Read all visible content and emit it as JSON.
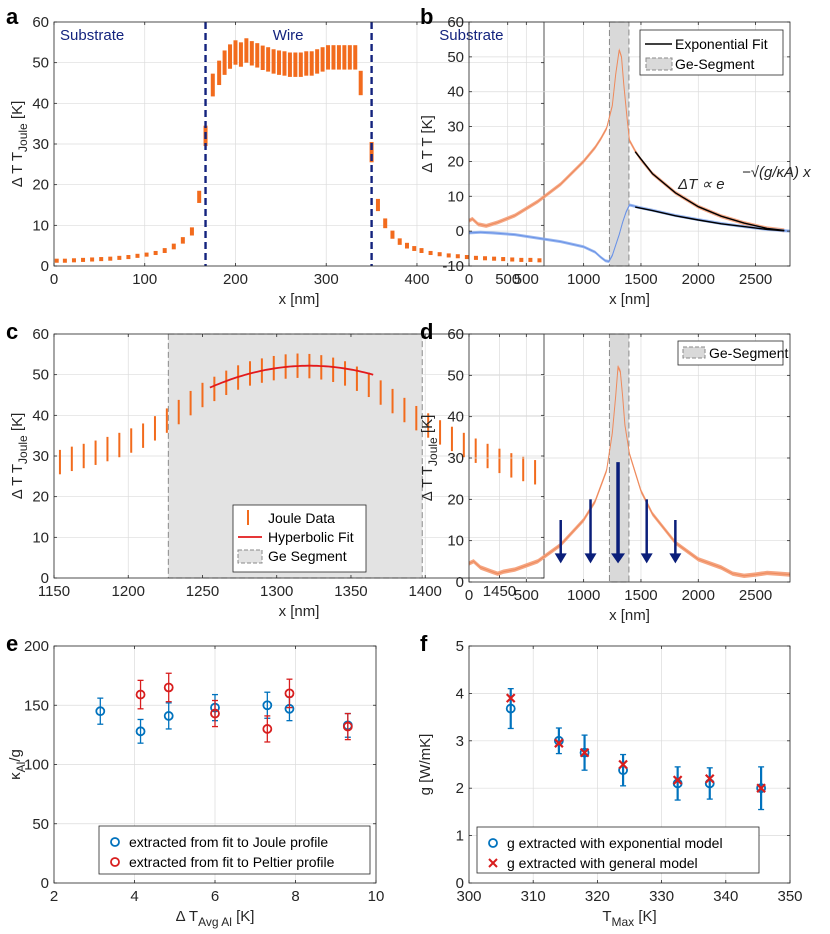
{
  "chart_data": [
    {
      "id": "a",
      "type": "scatter",
      "panel_label": "a",
      "xlabel": "x [nm]",
      "ylabel_main": "Δ T",
      "ylabel_sub": "Joule",
      "xlim": [
        0,
        540
      ],
      "ylim": [
        0,
        60
      ],
      "xticks": [
        0,
        100,
        200,
        300,
        400,
        500
      ],
      "yticks": [
        0,
        10,
        20,
        30,
        40,
        50,
        60
      ],
      "region_labels": [
        {
          "text": "Substrate",
          "x": 42
        },
        {
          "text": "Wire",
          "x": 258
        },
        {
          "text": "Substrate",
          "x": 460
        }
      ],
      "vlines": [
        167,
        350
      ],
      "errorbars": [
        [
          3,
          1.3,
          0.5
        ],
        [
          12,
          1.3,
          0.5
        ],
        [
          22,
          1.4,
          0.5
        ],
        [
          32,
          1.5,
          0.5
        ],
        [
          42,
          1.6,
          0.5
        ],
        [
          52,
          1.7,
          0.5
        ],
        [
          62,
          1.8,
          0.5
        ],
        [
          72,
          2.0,
          0.5
        ],
        [
          82,
          2.2,
          0.5
        ],
        [
          92,
          2.5,
          0.5
        ],
        [
          102,
          2.8,
          0.5
        ],
        [
          112,
          3.2,
          0.5
        ],
        [
          122,
          3.8,
          0.6
        ],
        [
          132,
          4.8,
          0.7
        ],
        [
          142,
          6.3,
          0.8
        ],
        [
          152,
          8.5,
          1.0
        ],
        [
          160,
          17,
          1.5
        ],
        [
          167,
          32,
          2.5
        ],
        [
          175,
          44.5,
          2.8
        ],
        [
          182,
          47.5,
          3
        ],
        [
          188,
          50,
          3
        ],
        [
          194,
          51.5,
          3
        ],
        [
          200,
          52.5,
          3
        ],
        [
          206,
          52,
          3
        ],
        [
          212,
          53,
          3
        ],
        [
          218,
          52.3,
          3
        ],
        [
          224,
          51.8,
          3
        ],
        [
          230,
          51.2,
          3
        ],
        [
          236,
          50.8,
          3
        ],
        [
          242,
          50.3,
          3
        ],
        [
          248,
          50,
          3
        ],
        [
          254,
          49.8,
          3
        ],
        [
          260,
          49.5,
          3
        ],
        [
          266,
          49.5,
          3
        ],
        [
          272,
          49.5,
          3
        ],
        [
          278,
          49.8,
          3
        ],
        [
          284,
          49.8,
          3
        ],
        [
          290,
          50.3,
          3
        ],
        [
          296,
          50.8,
          3
        ],
        [
          302,
          51.3,
          3
        ],
        [
          308,
          51.3,
          3
        ],
        [
          314,
          51.3,
          3
        ],
        [
          320,
          51.3,
          3
        ],
        [
          326,
          51.3,
          3
        ],
        [
          332,
          51.3,
          3
        ],
        [
          338,
          45,
          3
        ],
        [
          350,
          28,
          2.5
        ],
        [
          357,
          15,
          1.5
        ],
        [
          365,
          10.5,
          1.2
        ],
        [
          373,
          7.7,
          1
        ],
        [
          381,
          6,
          0.8
        ],
        [
          389,
          5,
          0.7
        ],
        [
          397,
          4.3,
          0.6
        ],
        [
          405,
          3.8,
          0.6
        ],
        [
          415,
          3.2,
          0.5
        ],
        [
          425,
          2.9,
          0.5
        ],
        [
          435,
          2.6,
          0.5
        ],
        [
          445,
          2.4,
          0.5
        ],
        [
          455,
          2.2,
          0.5
        ],
        [
          465,
          2.0,
          0.5
        ],
        [
          475,
          1.9,
          0.5
        ],
        [
          485,
          1.8,
          0.5
        ],
        [
          495,
          1.7,
          0.5
        ],
        [
          505,
          1.6,
          0.5
        ],
        [
          515,
          1.5,
          0.5
        ],
        [
          525,
          1.5,
          0.5
        ],
        [
          535,
          1.4,
          0.5
        ]
      ]
    },
    {
      "id": "b",
      "type": "line",
      "panel_label": "b",
      "xlabel": "x [nm]",
      "ylabel_main": "Δ T",
      "ylabel_sub": "",
      "xlim": [
        0,
        2800
      ],
      "ylim": [
        -10,
        60
      ],
      "xticks": [
        0,
        500,
        1000,
        1500,
        2000,
        2500
      ],
      "yticks": [
        -10,
        0,
        10,
        20,
        30,
        40,
        50,
        60
      ],
      "shade": [
        1225,
        1395
      ],
      "legend": [
        "Exponential Fit",
        "Ge-Segment"
      ],
      "annotation": "ΔT ∝ e^(−√(g/κA) x)",
      "series": [
        {
          "name": "orange",
          "x": [
            0,
            30,
            80,
            150,
            250,
            400,
            600,
            800,
            1000,
            1100,
            1150,
            1200,
            1250,
            1280,
            1310,
            1330,
            1350,
            1380,
            1400,
            1450,
            1500,
            1600,
            1800,
            2000,
            2200,
            2400,
            2600,
            2750
          ],
          "y": [
            3,
            3.5,
            2,
            1.5,
            2.5,
            4.5,
            8.5,
            13.5,
            20,
            24,
            26.5,
            29.5,
            36,
            45,
            52,
            50,
            42,
            32,
            26,
            23,
            20.5,
            16.5,
            11,
            7,
            4.3,
            2.3,
            0.8,
            0.2
          ]
        },
        {
          "name": "blue",
          "x": [
            0,
            100,
            200,
            400,
            600,
            800,
            1000,
            1100,
            1150,
            1190,
            1220,
            1250,
            1280,
            1310,
            1340,
            1370,
            1400,
            1430,
            1480,
            1600,
            1800,
            2000,
            2200,
            2400,
            2600,
            2800
          ],
          "y": [
            -0.5,
            -0.3,
            -0.5,
            -1,
            -2,
            -3,
            -4.5,
            -6,
            -7.5,
            -8.5,
            -8.7,
            -7,
            -4,
            -1,
            2.5,
            5.5,
            7.5,
            7.3,
            6.8,
            6,
            4.5,
            3.3,
            2.2,
            1.3,
            0.5,
            0
          ]
        },
        {
          "name": "Exponential Fit",
          "x": [
            1450,
            1600,
            1800,
            2000,
            2200,
            2400,
            2600,
            2750
          ],
          "y": [
            22.8,
            16.5,
            11,
            7,
            4.3,
            2.3,
            0.8,
            0.2
          ]
        },
        {
          "name": "Exponential Fit (blue)",
          "x": [
            1450,
            1600,
            1800,
            2000,
            2200,
            2400,
            2600,
            2750
          ],
          "y": [
            6.9,
            5.9,
            4.4,
            3.2,
            2.1,
            1.3,
            0.5,
            0.1
          ]
        }
      ]
    },
    {
      "id": "c",
      "type": "scatter",
      "panel_label": "c",
      "xlabel": "x [nm]",
      "ylabel_main": "Δ T",
      "ylabel_sub": "Joule",
      "xlim": [
        1150,
        1480
      ],
      "ylim": [
        0,
        60
      ],
      "xticks": [
        1150,
        1200,
        1250,
        1300,
        1350,
        1400,
        1450
      ],
      "yticks": [
        0,
        10,
        20,
        30,
        40,
        50,
        60
      ],
      "shade": [
        1227,
        1398
      ],
      "legend": [
        "Joule Data",
        "Hyperbolic Fit",
        "Ge Segment"
      ],
      "errorbars": [
        [
          1154,
          28.5,
          3
        ],
        [
          1162,
          29.3,
          3
        ],
        [
          1170,
          30,
          3
        ],
        [
          1178,
          30.8,
          3
        ],
        [
          1186,
          31.7,
          3
        ],
        [
          1194,
          32.7,
          3
        ],
        [
          1202,
          33.8,
          3
        ],
        [
          1210,
          35,
          3
        ],
        [
          1218,
          36.8,
          3
        ],
        [
          1226,
          38.7,
          3
        ],
        [
          1234,
          40.8,
          3
        ],
        [
          1242,
          43,
          3
        ],
        [
          1250,
          45,
          3
        ],
        [
          1258,
          46.5,
          3
        ],
        [
          1266,
          48,
          3
        ],
        [
          1274,
          49.3,
          3
        ],
        [
          1282,
          50.3,
          3
        ],
        [
          1290,
          51,
          3
        ],
        [
          1298,
          51.6,
          3
        ],
        [
          1306,
          52,
          3
        ],
        [
          1314,
          52.2,
          3
        ],
        [
          1322,
          52.1,
          3
        ],
        [
          1330,
          51.8,
          3
        ],
        [
          1338,
          51.2,
          3
        ],
        [
          1346,
          50.3,
          3
        ],
        [
          1354,
          49,
          3
        ],
        [
          1362,
          47.5,
          3
        ],
        [
          1370,
          45.6,
          3
        ],
        [
          1378,
          43.5,
          3
        ],
        [
          1386,
          41.3,
          3
        ],
        [
          1394,
          39.3,
          3
        ],
        [
          1402,
          37.5,
          3
        ],
        [
          1410,
          35.8,
          3
        ],
        [
          1418,
          34.2,
          3
        ],
        [
          1426,
          32.7,
          3
        ],
        [
          1434,
          31.3,
          3
        ],
        [
          1442,
          30,
          3
        ],
        [
          1450,
          28.8,
          3
        ],
        [
          1458,
          27.7,
          3
        ],
        [
          1466,
          26.8,
          3
        ],
        [
          1474,
          26,
          3
        ]
      ],
      "fit": {
        "x0": 1322,
        "y0": 52.2,
        "k": 0.0012,
        "xmin": 1255,
        "xmax": 1365
      }
    },
    {
      "id": "d",
      "type": "line",
      "panel_label": "d",
      "xlabel": "x [nm]",
      "ylabel_main": "Δ T",
      "ylabel_sub": "Joule",
      "xlim": [
        0,
        2800
      ],
      "ylim": [
        0,
        60
      ],
      "xticks": [
        0,
        500,
        1000,
        1500,
        2000,
        2500
      ],
      "yticks": [
        0,
        10,
        20,
        30,
        40,
        50,
        60
      ],
      "shade": [
        1225,
        1395
      ],
      "legend": [
        "Ge-Segment"
      ],
      "arrows": [
        {
          "x": 800,
          "y_top": 15,
          "size": "small"
        },
        {
          "x": 1060,
          "y_top": 20,
          "size": "medium"
        },
        {
          "x": 1300,
          "y_top": 29,
          "size": "large"
        },
        {
          "x": 1550,
          "y_top": 20,
          "size": "medium"
        },
        {
          "x": 1800,
          "y_top": 15,
          "size": "small"
        }
      ],
      "series": [
        {
          "name": "joule",
          "x": [
            0,
            40,
            100,
            200,
            250,
            300,
            400,
            600,
            800,
            1000,
            1100,
            1200,
            1250,
            1280,
            1300,
            1320,
            1340,
            1360,
            1400,
            1500,
            1600,
            1800,
            2000,
            2200,
            2300,
            2400,
            2500,
            2600,
            2700,
            2800
          ],
          "y": [
            4.5,
            5,
            3.5,
            2.5,
            2,
            2.5,
            3,
            5,
            9,
            15,
            19.5,
            27,
            36,
            45,
            52,
            51,
            45,
            38,
            31,
            22,
            16.5,
            9.5,
            5.5,
            3.5,
            2,
            1.5,
            1.8,
            2.2,
            2,
            1.8
          ]
        }
      ]
    },
    {
      "id": "e",
      "type": "scatter",
      "panel_label": "e",
      "xlabel_main": "Δ T",
      "xlabel_sub": "Avg Al",
      "xlabel_unit": "[K]",
      "ylabel_main": "κ",
      "ylabel_sub": "Al",
      "ylabel_unit": "/g",
      "xlim": [
        2,
        10
      ],
      "ylim": [
        0,
        200
      ],
      "xticks": [
        2,
        4,
        6,
        8,
        10
      ],
      "yticks": [
        0,
        50,
        100,
        150,
        200
      ],
      "legend": [
        "extracted from fit to Joule profile",
        "extracted from fit to Peltier profile"
      ],
      "series": [
        {
          "name": "extracted from fit to Joule profile",
          "color": "#0072bd",
          "x": [
            3.15,
            4.15,
            4.85,
            6.0,
            7.3,
            7.85,
            9.3
          ],
          "y": [
            145,
            128,
            141,
            148,
            150,
            147,
            133
          ],
          "err": [
            11,
            10,
            11,
            11,
            11,
            10,
            10
          ]
        },
        {
          "name": "extracted from fit to Peltier profile",
          "color": "#d81e1e",
          "x": [
            4.15,
            4.85,
            6.0,
            7.3,
            7.85,
            9.3
          ],
          "y": [
            159,
            165,
            143,
            130,
            160,
            132
          ],
          "err": [
            12,
            12,
            11,
            11,
            12,
            11
          ]
        }
      ]
    },
    {
      "id": "f",
      "type": "scatter",
      "panel_label": "f",
      "xlabel_main": "T",
      "xlabel_sub": "Max",
      "xlabel_unit": "[K]",
      "ylabel_main": "g [W/mK]",
      "ylabel_sub": "",
      "ylabel_unit": "",
      "xlim": [
        300,
        350
      ],
      "ylim": [
        0,
        5
      ],
      "xticks": [
        300,
        310,
        320,
        330,
        340,
        350
      ],
      "yticks": [
        0,
        1,
        2,
        3,
        4,
        5
      ],
      "legend": [
        "g extracted with exponential model",
        "g extracted with general model"
      ],
      "series": [
        {
          "name": "g extracted with exponential model",
          "color": "#0072bd",
          "x": [
            306.5,
            314,
            318,
            324,
            332.5,
            337.5,
            345.5
          ],
          "y": [
            3.68,
            3.0,
            2.75,
            2.38,
            2.1,
            2.1,
            2.0
          ],
          "err": [
            0.42,
            0.27,
            0.37,
            0.33,
            0.35,
            0.33,
            0.45
          ]
        },
        {
          "name": "g extracted with general model",
          "color": "#d81e1e",
          "x": [
            306.5,
            314,
            318,
            324,
            332.5,
            337.5,
            345.5
          ],
          "y": [
            3.9,
            2.95,
            2.75,
            2.5,
            2.17,
            2.2,
            2.0
          ],
          "err": []
        }
      ]
    }
  ]
}
